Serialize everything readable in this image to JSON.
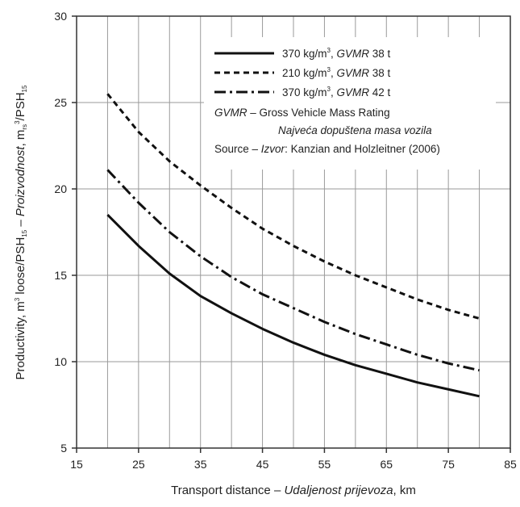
{
  "chart_data": {
    "type": "line",
    "xlim": [
      15,
      85
    ],
    "ylim": [
      5,
      30
    ],
    "xticks": [
      15,
      25,
      35,
      45,
      55,
      65,
      75,
      85
    ],
    "yticks": [
      5,
      10,
      15,
      20,
      25,
      30
    ],
    "x_minor_gridlines": [
      20,
      30,
      40,
      50,
      60,
      70,
      80
    ],
    "grid": true,
    "legend_position": "top-right",
    "xlabel": {
      "plain": "Transport distance – ",
      "italic": "Udaljenost prijevoza",
      "unit": ", km"
    },
    "ylabel": {
      "part1": "Productivity, m",
      "sup1": "3",
      "part2": " loose/PSH",
      "sub1": "15",
      "part3": " – ",
      "italic": "Proizvodnost",
      "part4": ", m",
      "sub2": "rs",
      "sup2": "3",
      "part5": "/PSH",
      "sub3": "15"
    },
    "series": [
      {
        "name_prefix": "370 kg/m",
        "name_sup": "3",
        "name_comma": ", ",
        "name_italic": "GVMR",
        "name_suffix": " 38 t",
        "line_style": "solid",
        "x": [
          20,
          25,
          30,
          35,
          40,
          45,
          50,
          55,
          60,
          65,
          70,
          75,
          80
        ],
        "y": [
          18.5,
          16.7,
          15.1,
          13.8,
          12.8,
          11.9,
          11.1,
          10.4,
          9.8,
          9.3,
          8.8,
          8.4,
          8.0
        ]
      },
      {
        "name_prefix": "210 kg/m",
        "name_sup": "3",
        "name_comma": ", ",
        "name_italic": "GVMR",
        "name_suffix": " 38 t",
        "line_style": "dashed",
        "x": [
          20,
          25,
          30,
          35,
          40,
          45,
          50,
          55,
          60,
          65,
          70,
          75,
          80
        ],
        "y": [
          25.5,
          23.3,
          21.6,
          20.2,
          18.9,
          17.7,
          16.7,
          15.8,
          15.0,
          14.3,
          13.6,
          13.0,
          12.5
        ]
      },
      {
        "name_prefix": "370 kg/m",
        "name_sup": "3",
        "name_comma": ", ",
        "name_italic": "GVMR",
        "name_suffix": " 42 t",
        "line_style": "dash-dot",
        "x": [
          20,
          25,
          30,
          35,
          40,
          45,
          50,
          55,
          60,
          65,
          70,
          75,
          80
        ],
        "y": [
          21.1,
          19.2,
          17.5,
          16.1,
          14.9,
          13.9,
          13.1,
          12.3,
          11.6,
          11.0,
          10.4,
          9.9,
          9.5
        ]
      }
    ],
    "notes": [
      {
        "italic": "GVMR",
        "plain": " – Gross Vehicle Mass Rating"
      },
      {
        "italic": "Najveća dopuštena masa vozila",
        "plain": ""
      },
      {
        "plain_prefix": "Source – ",
        "italic": "Izvor",
        "plain": ": Kanzian and Holzleitner (2006)"
      }
    ]
  }
}
